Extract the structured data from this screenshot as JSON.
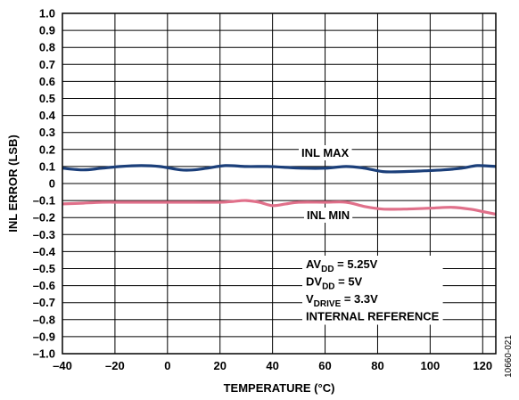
{
  "chart_data": {
    "type": "line",
    "xlabel": "TEMPERATURE (°C)",
    "ylabel": "INL ERROR (LSB)",
    "xlim": [
      -40,
      125
    ],
    "ylim": [
      -1.0,
      1.0
    ],
    "x_ticks": [
      "–40",
      "–20",
      "0",
      "20",
      "40",
      "60",
      "80",
      "100",
      "120"
    ],
    "y_ticks": [
      "1.0",
      "0.9",
      "0.8",
      "0.7",
      "0.6",
      "0.5",
      "0.4",
      "0.3",
      "0.2",
      "0.1",
      "0",
      "–0.1",
      "–0.2",
      "–0.3",
      "–0.4",
      "–0.5",
      "–0.6",
      "–0.7",
      "–0.8",
      "–0.9",
      "–1.0"
    ],
    "grid": true,
    "colors": {
      "inl_max": "#1b3f7a",
      "inl_min": "#e0708a"
    },
    "series": [
      {
        "name": "INL MAX",
        "x": [
          -40,
          -32,
          -25,
          -18,
          -10,
          -3,
          5,
          10,
          15,
          22,
          30,
          38,
          45,
          52,
          60,
          68,
          75,
          82,
          90,
          98,
          105,
          112,
          118,
          125
        ],
        "values": [
          0.09,
          0.08,
          0.09,
          0.1,
          0.105,
          0.1,
          0.08,
          0.08,
          0.09,
          0.105,
          0.1,
          0.1,
          0.095,
          0.09,
          0.09,
          0.1,
          0.09,
          0.07,
          0.07,
          0.075,
          0.08,
          0.09,
          0.105,
          0.1
        ]
      },
      {
        "name": "INL MIN",
        "x": [
          -40,
          -32,
          -25,
          -15,
          0,
          10,
          20,
          25,
          30,
          35,
          40,
          45,
          50,
          60,
          68,
          75,
          82,
          90,
          100,
          108,
          115,
          120,
          125
        ],
        "values": [
          -0.12,
          -0.115,
          -0.11,
          -0.11,
          -0.11,
          -0.11,
          -0.11,
          -0.105,
          -0.1,
          -0.11,
          -0.13,
          -0.12,
          -0.11,
          -0.11,
          -0.11,
          -0.135,
          -0.15,
          -0.15,
          -0.145,
          -0.14,
          -0.15,
          -0.165,
          -0.18
        ]
      }
    ],
    "annotations": [
      {
        "id": "inl_max_label",
        "text": "INL MAX"
      },
      {
        "id": "inl_min_label",
        "text": "INL MIN"
      }
    ],
    "conditions": [
      {
        "main": "AV",
        "sub": "DD",
        "tail": " = 5.25V"
      },
      {
        "main": "DV",
        "sub": "DD",
        "tail": " = 5V"
      },
      {
        "main": "V",
        "sub": "DRIVE",
        "tail": " = 3.3V"
      },
      {
        "main": "INTERNAL REFERENCE",
        "sub": "",
        "tail": ""
      }
    ],
    "figure_id": "10660-021"
  }
}
